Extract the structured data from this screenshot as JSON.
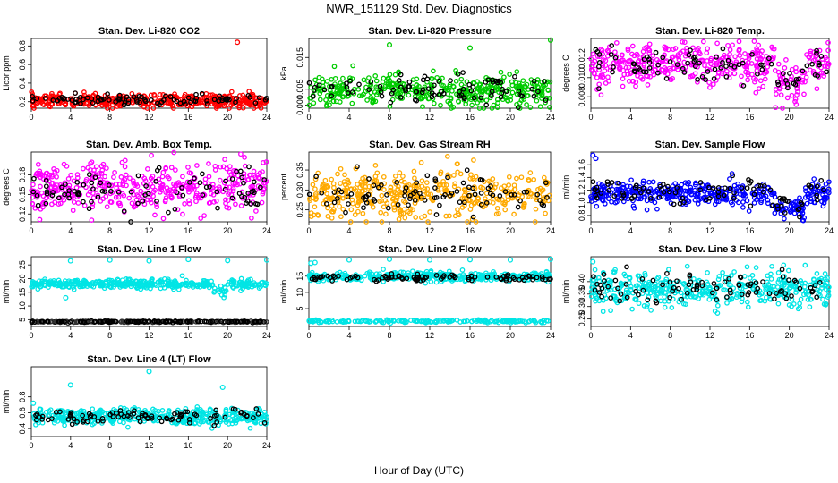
{
  "figure": {
    "title": "NWR_151129  Std. Dev. Diagnostics",
    "xlabel": "Hour of Day (UTC)"
  },
  "chart_data": [
    {
      "type": "scatter",
      "title": "Stan. Dev. Li-820 CO2",
      "ylabel": "Licor ppm",
      "xlim": [
        0,
        24
      ],
      "ylim": [
        0.13,
        0.88
      ],
      "xticks": [
        0,
        4,
        8,
        12,
        16,
        20,
        24
      ],
      "yticks": [
        0.2,
        0.4,
        0.6,
        0.8
      ],
      "ytick_labels": [
        "0.2",
        "0.4",
        "0.6",
        "0.8"
      ],
      "colors": {
        "dense": "#ff0000",
        "sparse": "#000000"
      },
      "series": [
        {
          "name": "dense",
          "center": 0.21,
          "spread": 0.035
        },
        {
          "name": "sparse",
          "center": 0.22,
          "spread": 0.03
        }
      ],
      "outliers": [
        [
          21,
          0.84
        ]
      ]
    },
    {
      "type": "scatter",
      "title": "Stan. Dev. Li-820 Pressure",
      "ylabel": "kPa",
      "xlim": [
        0,
        24
      ],
      "ylim": [
        -0.001,
        0.021
      ],
      "xticks": [
        0,
        4,
        8,
        12,
        16,
        20,
        24
      ],
      "yticks": [
        0.0,
        0.005,
        0.015
      ],
      "ytick_labels": [
        "0.000",
        "0.005",
        "0.015"
      ],
      "colors": {
        "dense": "#00cc00",
        "sparse": "#000000"
      },
      "series": [
        {
          "name": "dense",
          "center": 0.0045,
          "spread": 0.0025
        },
        {
          "name": "sparse",
          "center": 0.005,
          "spread": 0.0022
        }
      ],
      "outliers": [
        [
          8,
          0.019
        ],
        [
          16,
          0.018
        ],
        [
          24,
          0.0205
        ]
      ]
    },
    {
      "type": "scatter",
      "title": "Stan. Dev. Li-820 Temp.",
      "ylabel": "degrees C",
      "xlim": [
        0,
        24
      ],
      "ylim": [
        0.0068,
        0.0141
      ],
      "xticks": [
        0,
        4,
        8,
        12,
        16,
        20,
        24
      ],
      "yticks": [
        0.008,
        0.01,
        0.012
      ],
      "ytick_labels": [
        "0.008",
        "0.010",
        "0.012"
      ],
      "colors": {
        "dense": "#ff00ff",
        "sparse": "#000000"
      },
      "series": [
        {
          "name": "dense",
          "center": 0.0113,
          "spread": 0.0011
        },
        {
          "name": "sparse",
          "center": 0.0115,
          "spread": 0.0008
        }
      ],
      "outliers": []
    },
    {
      "type": "scatter",
      "title": "Stan. Dev. Amb. Box Temp.",
      "ylabel": "degrees C",
      "xlim": [
        0,
        24
      ],
      "ylim": [
        0.108,
        0.215
      ],
      "xticks": [
        0,
        4,
        8,
        12,
        16,
        20,
        24
      ],
      "yticks": [
        0.12,
        0.15,
        0.18
      ],
      "ytick_labels": [
        "0.12",
        "0.15",
        "0.18"
      ],
      "colors": {
        "dense": "#ff00ff",
        "sparse": "#000000"
      },
      "series": [
        {
          "name": "dense",
          "center": 0.16,
          "spread": 0.02
        },
        {
          "name": "sparse",
          "center": 0.152,
          "spread": 0.016
        }
      ],
      "outliers": []
    },
    {
      "type": "scatter",
      "title": "Stan. Dev. Gas Stream RH",
      "ylabel": "percent",
      "xlim": [
        0,
        24
      ],
      "ylim": [
        0.22,
        0.395
      ],
      "xticks": [
        0,
        4,
        8,
        12,
        16,
        20,
        24
      ],
      "yticks": [
        0.25,
        0.3,
        0.35
      ],
      "ytick_labels": [
        "0.25",
        "0.30",
        "0.35"
      ],
      "colors": {
        "dense": "#ffaa00",
        "sparse": "#000000"
      },
      "series": [
        {
          "name": "dense",
          "center": 0.29,
          "spread": 0.03
        },
        {
          "name": "sparse",
          "center": 0.29,
          "spread": 0.025
        }
      ],
      "outliers": []
    },
    {
      "type": "scatter",
      "title": "Stan. Dev. Sample Flow",
      "ylabel": "ml/min",
      "xlim": [
        0,
        24
      ],
      "ylim": [
        0.7,
        1.8
      ],
      "xticks": [
        0,
        4,
        8,
        12,
        16,
        20,
        24
      ],
      "yticks": [
        0.8,
        1.0,
        1.2,
        1.4,
        1.6
      ],
      "ytick_labels": [
        "0.8",
        "1.0",
        "1.2",
        "1.4",
        "1.6"
      ],
      "colors": {
        "dense": "#0000ff",
        "sparse": "#000000"
      },
      "series": [
        {
          "name": "dense",
          "center": 1.14,
          "spread": 0.09
        },
        {
          "name": "sparse",
          "center": 1.18,
          "spread": 0.1
        }
      ],
      "outliers": [
        [
          0.2,
          1.75
        ],
        [
          0.5,
          1.7
        ]
      ]
    },
    {
      "type": "scatter",
      "title": "Stan. Dev. Line 1 Flow",
      "ylabel": "ml/min",
      "xlim": [
        0,
        24
      ],
      "ylim": [
        2.5,
        28
      ],
      "xticks": [
        0,
        4,
        8,
        12,
        16,
        20,
        24
      ],
      "yticks": [
        5,
        10,
        15,
        20,
        25
      ],
      "ytick_labels": [
        "5",
        "10",
        "15",
        "20",
        "25"
      ],
      "colors": {
        "dense": "#00e5e5",
        "sparse": "#000000"
      },
      "series": [
        {
          "name": "dense",
          "center": 18,
          "spread": 0.8
        },
        {
          "name": "baseline",
          "center": 4.2,
          "spread": 0.15
        },
        {
          "name": "sparse",
          "center": 4.3,
          "spread": 0.1
        }
      ],
      "outliers": [
        [
          4,
          26.5
        ],
        [
          8,
          26.8
        ],
        [
          12,
          26.5
        ],
        [
          16,
          27
        ],
        [
          20,
          26.6
        ],
        [
          24,
          26.8
        ],
        [
          3.5,
          13
        ]
      ]
    },
    {
      "type": "scatter",
      "title": "Stan. Dev. Line 2 Flow",
      "ylabel": "ml/min",
      "xlim": [
        0,
        24
      ],
      "ylim": [
        -0.5,
        21
      ],
      "xticks": [
        0,
        4,
        8,
        12,
        16,
        20,
        24
      ],
      "yticks": [
        5,
        10,
        15
      ],
      "ytick_labels": [
        "5",
        "10",
        "15"
      ],
      "colors": {
        "dense": "#00e5e5",
        "sparse": "#000000"
      },
      "series": [
        {
          "name": "dense",
          "center": 14.8,
          "spread": 0.7
        },
        {
          "name": "baseline",
          "center": 1.1,
          "spread": 0.2
        },
        {
          "name": "sparse",
          "center": 14.5,
          "spread": 0.5
        }
      ],
      "outliers": [
        [
          0.2,
          19
        ],
        [
          0.6,
          19.2
        ],
        [
          4,
          20
        ],
        [
          8,
          20.2
        ],
        [
          12,
          20
        ],
        [
          16,
          20.1
        ],
        [
          20,
          20
        ],
        [
          24,
          20.2
        ]
      ]
    },
    {
      "type": "scatter",
      "title": "Stan. Dev. Line 3 Flow",
      "ylabel": "ml/min",
      "xlim": [
        0,
        24
      ],
      "ylim": [
        0.22,
        0.5
      ],
      "xticks": [
        0,
        4,
        8,
        12,
        16,
        20,
        24
      ],
      "yticks": [
        0.25,
        0.3,
        0.35,
        0.4
      ],
      "ytick_labels": [
        "0.25",
        "0.30",
        "0.35",
        "0.40"
      ],
      "colors": {
        "dense": "#00e5e5",
        "sparse": "#000000"
      },
      "series": [
        {
          "name": "dense",
          "center": 0.37,
          "spread": 0.035
        },
        {
          "name": "sparse",
          "center": 0.375,
          "spread": 0.03
        }
      ],
      "outliers": [
        [
          0.2,
          0.48
        ]
      ]
    },
    {
      "type": "scatter",
      "title": "Stan. Dev. Line 4 (LT) Flow",
      "ylabel": "ml/min",
      "xlim": [
        0,
        24
      ],
      "ylim": [
        0.3,
        1.18
      ],
      "xticks": [
        0,
        4,
        8,
        12,
        16,
        20,
        24
      ],
      "yticks": [
        0.4,
        0.6,
        0.8
      ],
      "ytick_labels": [
        "0.4",
        "0.6",
        "0.8"
      ],
      "colors": {
        "dense": "#00e5e5",
        "sparse": "#000000"
      },
      "series": [
        {
          "name": "dense",
          "center": 0.55,
          "spread": 0.05
        },
        {
          "name": "sparse",
          "center": 0.55,
          "spread": 0.045
        }
      ],
      "outliers": [
        [
          4,
          0.95
        ],
        [
          12,
          1.12
        ],
        [
          19.5,
          0.92
        ],
        [
          0.2,
          0.72
        ]
      ]
    }
  ]
}
